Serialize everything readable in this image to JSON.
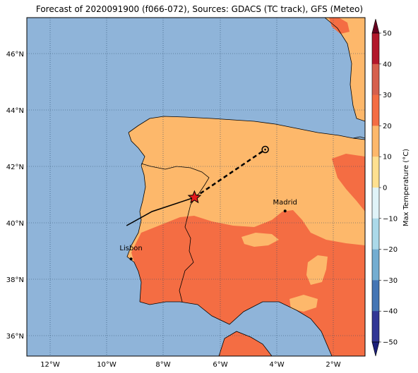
{
  "title": "Forecast of 2020091900 (f066-072), Sources: GDACS (TC track), GFS (Meteo)",
  "map": {
    "lon_labels": [
      "12°W",
      "10°W",
      "8°W",
      "6°W",
      "4°W",
      "2°W"
    ],
    "lat_labels": [
      "36°N",
      "38°N",
      "40°N",
      "42°N",
      "44°N",
      "46°N"
    ],
    "cities": [
      {
        "name": "Madrid",
        "lon": -3.7,
        "lat": 40.42
      },
      {
        "name": "Lisbon",
        "lon": -9.14,
        "lat": 38.72
      }
    ],
    "track_past": [
      [
        -9.3,
        39.9
      ],
      [
        -8.4,
        40.4
      ],
      [
        -6.9,
        40.9
      ]
    ],
    "track_forecast": [
      [
        -6.9,
        40.9
      ],
      [
        -4.4,
        42.6
      ]
    ],
    "current_position": {
      "lon": -6.9,
      "lat": 40.9
    },
    "forecast_position": {
      "lon": -4.4,
      "lat": 42.6
    },
    "colors": {
      "sea": "#8fb4d9",
      "land_10_20": "#fdb86b",
      "land_20_30": "#f46d43",
      "land_0_10": "#fee090",
      "star": "#e41a1c"
    }
  },
  "colorbar": {
    "label": "Max Temperature (°C)",
    "ticks": [
      "50",
      "40",
      "30",
      "20",
      "10",
      "0",
      "−10",
      "−20",
      "−30",
      "−40",
      "−50"
    ],
    "colors": [
      "#67001f",
      "#b2182b",
      "#d6604d",
      "#f46d43",
      "#fdb86b",
      "#fee090",
      "#e0f3f8",
      "#abd9e9",
      "#74add1",
      "#4575b4",
      "#313695",
      "#1b1f7a"
    ]
  }
}
